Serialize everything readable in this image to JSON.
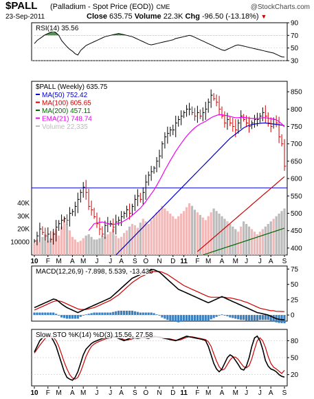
{
  "header": {
    "symbol": "$PALL",
    "description": "(Palladium - Spot Price (EOD))",
    "exchange": "CME",
    "copyright": "@StockCharts.com",
    "date": "23-Sep-2011",
    "close_label": "Close",
    "close_value": "635.75",
    "volume_label": "Volume",
    "volume_value": "22.3K",
    "chg_label": "Chg",
    "chg_value": "-96.50 (-13.18%)"
  },
  "colors": {
    "price_bars": "#000000",
    "ma50": "#0000cc",
    "ma100": "#cc0000",
    "ma200": "#006600",
    "ema21": "#ee00ee",
    "volume_up": "#f2b8b8",
    "volume_down": "#bbbbbb",
    "rsi_fill": "#3a7a3a",
    "macd_hist": "#3a7fbf",
    "signal": "#cc0000"
  },
  "x_axis": {
    "labels": [
      "10",
      "F",
      "M",
      "A",
      "M",
      "J",
      "J",
      "A",
      "S",
      "O",
      "N",
      "D",
      "11",
      "F",
      "M",
      "A",
      "M",
      "J",
      "J",
      "A",
      "S"
    ],
    "bold_labels": [
      "10",
      "11"
    ]
  },
  "chart_data": [
    {
      "type": "line",
      "name": "rsi",
      "title": "RSI(14) 35.56",
      "ylim": [
        30,
        90
      ],
      "yticks": [
        30,
        50,
        70,
        90
      ],
      "reference_lines": [
        30,
        50,
        70
      ],
      "values": [
        57,
        62,
        65,
        68,
        71,
        73,
        75,
        77,
        74,
        70,
        62,
        57,
        52,
        48,
        45,
        41,
        39,
        46,
        50,
        54,
        56,
        58,
        60,
        62,
        64,
        66,
        68,
        69,
        70,
        71,
        72,
        73,
        72,
        71,
        70,
        69,
        68,
        66,
        64,
        62,
        60,
        58,
        56,
        55,
        56,
        57,
        58,
        59,
        60,
        61,
        62,
        63,
        65,
        66,
        67,
        68,
        69,
        70,
        69,
        67,
        65,
        63,
        61,
        59,
        57,
        55,
        53,
        51,
        49,
        47,
        46,
        48,
        50,
        52,
        54,
        55,
        54,
        53,
        52,
        51,
        50,
        49,
        48,
        47,
        46,
        45,
        44,
        43,
        42,
        40,
        38,
        36,
        35.56
      ]
    },
    {
      "type": "bar",
      "name": "price",
      "title": "$PALL (Weekly) 635.75",
      "ylim": [
        380,
        880
      ],
      "yticks": [
        400,
        450,
        500,
        550,
        600,
        650,
        700,
        750,
        800,
        850
      ],
      "horizontal_line": 573,
      "legend": [
        {
          "label": "MA(50) 752.42",
          "color": "#0000cc"
        },
        {
          "label": "MA(100) 605.65",
          "color": "#cc0000"
        },
        {
          "label": "MA(200) 457.11",
          "color": "#006600"
        },
        {
          "label": "EMA(21) 748.74",
          "color": "#ee00ee"
        },
        {
          "label": "Volume 22,335",
          "color": "#bbbbbb"
        }
      ],
      "closes": [
        420,
        435,
        455,
        445,
        435,
        440,
        425,
        440,
        460,
        470,
        480,
        485,
        480,
        500,
        505,
        520,
        540,
        560,
        575,
        560,
        520,
        510,
        490,
        470,
        455,
        440,
        465,
        470,
        470,
        460,
        475,
        480,
        490,
        500,
        510,
        500,
        520,
        540,
        550,
        540,
        560,
        590,
        610,
        620,
        630,
        650,
        665,
        700,
        720,
        730,
        740,
        740,
        760,
        770,
        780,
        790,
        800,
        800,
        790,
        780,
        790,
        780,
        790,
        800,
        820,
        840,
        830,
        820,
        800,
        780,
        760,
        770,
        760,
        750,
        740,
        760,
        780,
        770,
        760,
        750,
        760,
        770,
        770,
        780,
        790,
        780,
        760,
        750,
        770,
        760,
        720,
        700,
        635.75
      ],
      "ma50": [
        null,
        null,
        null,
        null,
        null,
        null,
        null,
        null,
        null,
        null,
        null,
        null,
        null,
        null,
        null,
        null,
        null,
        null,
        null,
        null,
        null,
        null,
        null,
        null,
        null,
        null,
        null,
        null,
        null,
        null,
        380,
        388,
        396,
        404,
        412,
        420,
        428,
        436,
        444,
        452,
        460,
        468,
        476,
        484,
        492,
        500,
        508,
        516,
        524,
        532,
        540,
        548,
        556,
        564,
        572,
        580,
        588,
        596,
        604,
        612,
        620,
        628,
        636,
        644,
        652,
        660,
        668,
        676,
        684,
        692,
        700,
        708,
        716,
        722,
        728,
        734,
        740,
        746,
        750,
        753,
        755,
        757,
        758,
        759,
        760,
        760,
        759,
        758,
        757,
        756,
        755,
        754,
        752.42
      ],
      "ma100": [
        null,
        null,
        null,
        null,
        null,
        null,
        null,
        null,
        null,
        null,
        null,
        null,
        null,
        null,
        null,
        null,
        null,
        null,
        null,
        null,
        null,
        null,
        null,
        null,
        null,
        null,
        null,
        null,
        null,
        null,
        null,
        null,
        null,
        null,
        null,
        null,
        null,
        null,
        null,
        null,
        null,
        null,
        null,
        null,
        null,
        null,
        null,
        null,
        null,
        null,
        null,
        null,
        null,
        null,
        null,
        null,
        null,
        null,
        null,
        null,
        null,
        null,
        null,
        null,
        null,
        null,
        null,
        null,
        null,
        null,
        null,
        null,
        null,
        null,
        null,
        null,
        null,
        null,
        null,
        null,
        null,
        null,
        null,
        null,
        null,
        null,
        null,
        null,
        null,
        null,
        null,
        null,
        605.65
      ],
      "ema21": [
        null,
        null,
        null,
        null,
        null,
        null,
        null,
        null,
        null,
        null,
        null,
        null,
        null,
        null,
        null,
        null,
        null,
        null,
        null,
        null,
        450,
        460,
        470,
        472,
        474,
        475,
        473,
        470,
        468,
        468,
        469,
        471,
        474,
        478,
        483,
        488,
        494,
        501,
        508,
        515,
        524,
        534,
        545,
        556,
        567,
        580,
        594,
        609,
        624,
        638,
        652,
        665,
        678,
        690,
        701,
        712,
        722,
        731,
        739,
        746,
        752,
        757,
        761,
        765,
        770,
        775,
        779,
        782,
        784,
        784,
        782,
        781,
        779,
        777,
        775,
        775,
        776,
        776,
        775,
        774,
        773,
        773,
        773,
        774,
        775,
        775,
        774,
        772,
        771,
        769,
        764,
        758,
        748.74
      ]
    },
    {
      "type": "line",
      "name": "macd",
      "title": "MACD(12,26,9) -7.898, 5.539, -13.436",
      "ylim": [
        -10,
        80
      ],
      "yticks": [
        0,
        25,
        50,
        75
      ],
      "macd": [
        12,
        14,
        16,
        18,
        20,
        22,
        24,
        26,
        25,
        22,
        18,
        15,
        12,
        10,
        8,
        6,
        4,
        6,
        8,
        10,
        12,
        14,
        16,
        18,
        20,
        22,
        24,
        26,
        28,
        32,
        36,
        40,
        44,
        48,
        52,
        56,
        60,
        62,
        64,
        66,
        68,
        70,
        72,
        74,
        74,
        72,
        70,
        66,
        62,
        58,
        54,
        50,
        46,
        42,
        40,
        38,
        36,
        34,
        32,
        30,
        28,
        26,
        24,
        22,
        20,
        22,
        24,
        26,
        28,
        30,
        28,
        26,
        24,
        22,
        20,
        18,
        16,
        14,
        12,
        10,
        8,
        6,
        4,
        3,
        2,
        1,
        0,
        -2,
        -4,
        -6,
        -7,
        -7.5,
        -7.898
      ],
      "signal": [
        8,
        10,
        12,
        14,
        16,
        18,
        20,
        22,
        23,
        23,
        22,
        20,
        18,
        16,
        14,
        12,
        10,
        9,
        9,
        9,
        10,
        11,
        12,
        14,
        16,
        18,
        20,
        22,
        24,
        27,
        30,
        33,
        37,
        41,
        45,
        49,
        53,
        56,
        59,
        62,
        64,
        66,
        68,
        70,
        71,
        71,
        71,
        70,
        68,
        66,
        63,
        60,
        57,
        54,
        51,
        48,
        46,
        44,
        42,
        40,
        38,
        36,
        34,
        32,
        30,
        29,
        29,
        29,
        29,
        29,
        29,
        28,
        28,
        27,
        26,
        25,
        24,
        22,
        21,
        19,
        17,
        15,
        13,
        11,
        10,
        9,
        8,
        7,
        7,
        6,
        6,
        5.8,
        5.539
      ],
      "histogram": [
        4,
        4,
        4,
        4,
        4,
        4,
        4,
        4,
        2,
        -1,
        -4,
        -5,
        -6,
        -6,
        -6,
        -6,
        -6,
        -3,
        -1,
        1,
        2,
        3,
        4,
        4,
        4,
        4,
        4,
        4,
        4,
        5,
        6,
        7,
        7,
        7,
        7,
        7,
        7,
        6,
        5,
        4,
        4,
        4,
        4,
        4,
        3,
        1,
        -1,
        -4,
        -6,
        -8,
        -9,
        -10,
        -11,
        -12,
        -11,
        -10,
        -10,
        -10,
        -10,
        -10,
        -10,
        -10,
        -10,
        -10,
        -10,
        -7,
        -5,
        -3,
        -1,
        1,
        -1,
        -2,
        -4,
        -5,
        -6,
        -7,
        -8,
        -8,
        -9,
        -9,
        -9,
        -9,
        -9,
        -8,
        -8,
        -8,
        -8,
        -9,
        -11,
        -12,
        -13,
        -13.3,
        -13.436
      ]
    },
    {
      "type": "line",
      "name": "stochastic",
      "title": "Slow STO %K(14) %D(3) 15.56, 27.58",
      "ylim": [
        0,
        100
      ],
      "yticks": [
        20,
        50,
        80
      ],
      "reference_lines": [
        20,
        50,
        80
      ],
      "k": [
        60,
        70,
        80,
        85,
        88,
        90,
        88,
        80,
        70,
        55,
        40,
        25,
        15,
        12,
        10,
        15,
        25,
        40,
        55,
        65,
        70,
        75,
        78,
        80,
        82,
        84,
        85,
        86,
        87,
        88,
        86,
        84,
        82,
        80,
        82,
        84,
        86,
        85,
        84,
        85,
        86,
        85,
        84,
        86,
        88,
        87,
        86,
        85,
        84,
        83,
        82,
        81,
        80,
        82,
        84,
        86,
        88,
        87,
        86,
        85,
        84,
        83,
        82,
        80,
        70,
        55,
        40,
        30,
        25,
        30,
        40,
        50,
        55,
        52,
        45,
        38,
        30,
        28,
        35,
        50,
        70,
        85,
        88,
        80,
        65,
        45,
        35,
        30,
        28,
        25,
        20,
        17,
        15.56
      ],
      "d": [
        58,
        65,
        72,
        78,
        84,
        87,
        88,
        86,
        80,
        70,
        56,
        42,
        30,
        20,
        14,
        12,
        15,
        25,
        38,
        52,
        62,
        70,
        74,
        77,
        79,
        81,
        83,
        84,
        85,
        86,
        86,
        86,
        84,
        82,
        81,
        82,
        83,
        85,
        85,
        85,
        85,
        85,
        85,
        85,
        86,
        87,
        87,
        86,
        85,
        84,
        83,
        82,
        81,
        81,
        82,
        84,
        86,
        87,
        87,
        86,
        85,
        84,
        83,
        82,
        78,
        70,
        57,
        44,
        34,
        28,
        30,
        38,
        46,
        51,
        51,
        47,
        40,
        34,
        32,
        36,
        48,
        65,
        80,
        85,
        80,
        68,
        52,
        40,
        33,
        30,
        26,
        22,
        27.58
      ]
    }
  ]
}
